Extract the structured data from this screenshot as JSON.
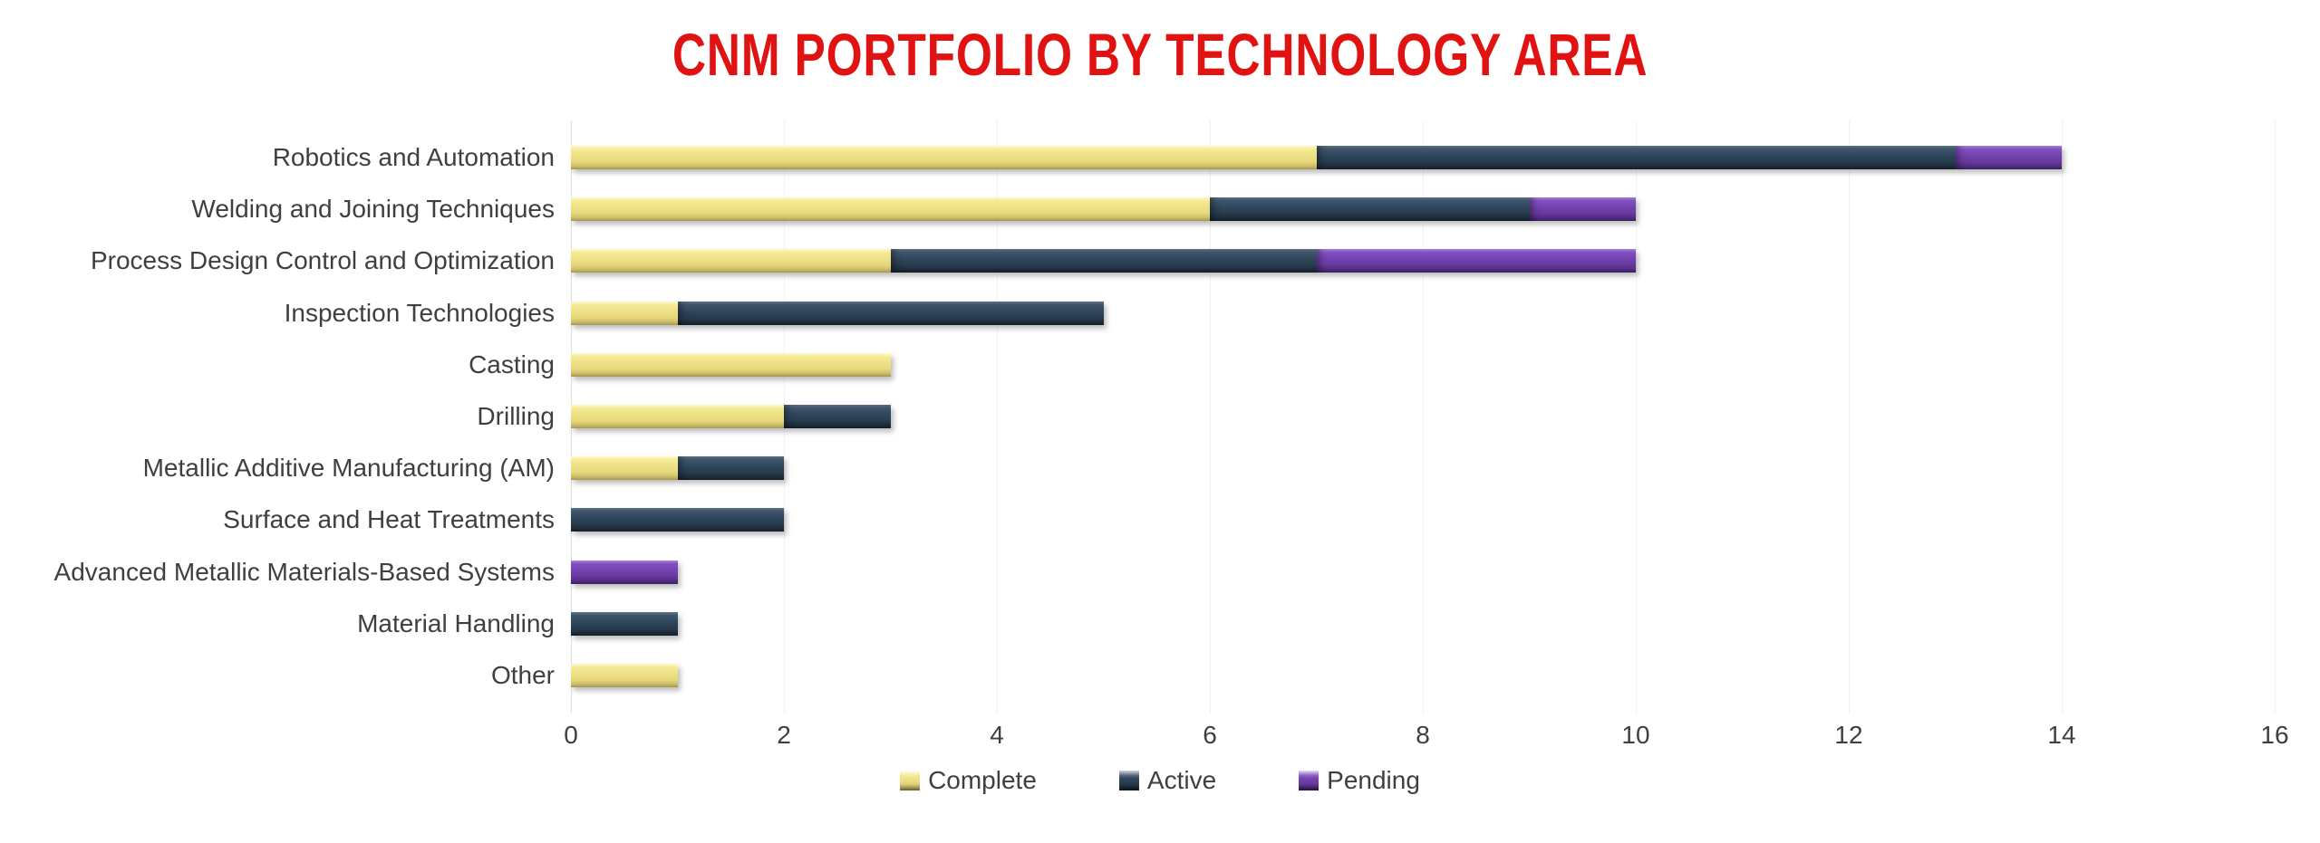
{
  "page": {
    "background": "#FFFFFF"
  },
  "chart_data": {
    "type": "bar",
    "orientation": "horizontal",
    "stacked": true,
    "title": "CNM PORTFOLIO BY TECHNOLOGY AREA",
    "title_color": "#E01212",
    "categories": [
      "Robotics and Automation",
      "Welding and Joining Techniques",
      "Process Design Control and Optimization",
      "Inspection Technologies",
      "Casting",
      "Drilling",
      "Metallic Additive Manufacturing (AM)",
      "Surface and Heat Treatments",
      "Advanced Metallic Materials-Based Systems",
      "Material Handling",
      "Other"
    ],
    "series": [
      {
        "name": "Complete",
        "key": "complete",
        "color": "#EDE084",
        "values": [
          7,
          6,
          3,
          1,
          3,
          2,
          1,
          0,
          0,
          0,
          1
        ]
      },
      {
        "name": "Active",
        "key": "active",
        "color": "#2C4257",
        "values": [
          6,
          3,
          4,
          4,
          0,
          1,
          1,
          2,
          0,
          1,
          0
        ]
      },
      {
        "name": "Pending",
        "key": "pending",
        "color": "#7040AC",
        "values": [
          1,
          1,
          3,
          0,
          0,
          0,
          0,
          0,
          1,
          0,
          0
        ]
      }
    ],
    "totals": [
      14,
      10,
      10,
      5,
      3,
      3,
      2,
      2,
      1,
      1,
      1
    ],
    "xlim": [
      0,
      16
    ],
    "xticks": [
      "0",
      "2",
      "4",
      "6",
      "8",
      "10",
      "12",
      "14",
      "16"
    ],
    "grid": "vertical-light",
    "gridline_color": "#F2F2F2",
    "axis_text_color": "#3F3F3F",
    "legend_position": "bottom-center",
    "legend": [
      "Complete",
      "Active",
      "Pending"
    ]
  }
}
